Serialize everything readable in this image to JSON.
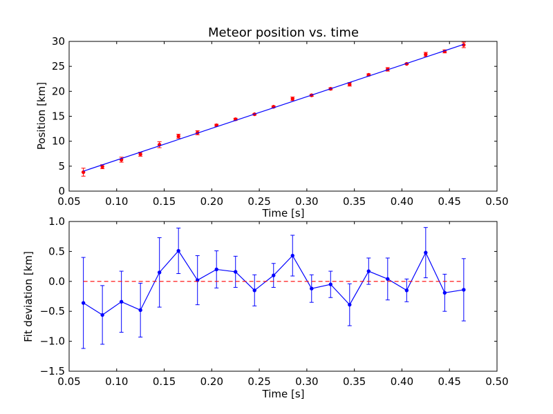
{
  "chart_data": [
    {
      "type": "scatter",
      "title": "Meteor position vs. time",
      "xlabel": "Time [s]",
      "ylabel": "Position [km]",
      "xlim": [
        0.05,
        0.5
      ],
      "ylim": [
        0,
        30
      ],
      "xticks": [
        "0.05",
        "0.10",
        "0.15",
        "0.20",
        "0.25",
        "0.30",
        "0.35",
        "0.40",
        "0.45",
        "0.50"
      ],
      "yticks": [
        "0",
        "5",
        "10",
        "15",
        "20",
        "25",
        "30"
      ],
      "series": [
        {
          "kind": "errorbar-points",
          "color": "#ff0000",
          "x": [
            0.065,
            0.085,
            0.105,
            0.125,
            0.145,
            0.165,
            0.185,
            0.205,
            0.225,
            0.245,
            0.265,
            0.285,
            0.305,
            0.325,
            0.345,
            0.365,
            0.385,
            0.405,
            0.425,
            0.445,
            0.465
          ],
          "y": [
            3.8,
            4.9,
            6.3,
            7.4,
            9.3,
            11.0,
            11.7,
            13.2,
            14.4,
            15.4,
            16.9,
            18.5,
            19.2,
            20.5,
            21.4,
            23.3,
            24.4,
            25.5,
            27.4,
            28.0,
            29.3
          ],
          "yerr": [
            0.8,
            0.4,
            0.5,
            0.4,
            0.6,
            0.4,
            0.4,
            0.2,
            0.2,
            0.15,
            0.15,
            0.35,
            0.2,
            0.2,
            0.35,
            0.2,
            0.35,
            0.1,
            0.4,
            0.3,
            0.55
          ]
        },
        {
          "kind": "line",
          "color": "#0000ff",
          "x": [
            0.065,
            0.465
          ],
          "y": [
            4.0,
            29.4
          ]
        }
      ]
    },
    {
      "type": "line",
      "xlabel": "Time [s]",
      "ylabel": "Fit deviation [km]",
      "xlim": [
        0.05,
        0.5
      ],
      "ylim": [
        -1.5,
        1.0
      ],
      "xticks": [
        "0.05",
        "0.10",
        "0.15",
        "0.20",
        "0.25",
        "0.30",
        "0.35",
        "0.40",
        "0.45",
        "0.50"
      ],
      "yticks": [
        "−1.5",
        "−1.0",
        "−0.5",
        "0.0",
        "0.5",
        "1.0"
      ],
      "series": [
        {
          "kind": "errorbar-line",
          "color": "#0000ff",
          "x": [
            0.065,
            0.085,
            0.105,
            0.125,
            0.145,
            0.165,
            0.185,
            0.205,
            0.225,
            0.245,
            0.265,
            0.285,
            0.305,
            0.325,
            0.345,
            0.365,
            0.385,
            0.405,
            0.425,
            0.445,
            0.465
          ],
          "y": [
            -0.36,
            -0.56,
            -0.34,
            -0.48,
            0.15,
            0.51,
            0.02,
            0.2,
            0.16,
            -0.15,
            0.1,
            0.43,
            -0.12,
            -0.05,
            -0.39,
            0.17,
            0.04,
            -0.15,
            0.48,
            -0.19,
            -0.14
          ],
          "yerr": [
            0.76,
            0.49,
            0.51,
            0.45,
            0.58,
            0.38,
            0.41,
            0.31,
            0.26,
            0.26,
            0.2,
            0.34,
            0.23,
            0.22,
            0.35,
            0.22,
            0.35,
            0.19,
            0.42,
            0.31,
            0.52
          ]
        },
        {
          "kind": "reference-line",
          "color": "#ff0000",
          "dashed": true,
          "x": [
            0.065,
            0.465
          ],
          "y": [
            0,
            0
          ]
        }
      ]
    }
  ]
}
